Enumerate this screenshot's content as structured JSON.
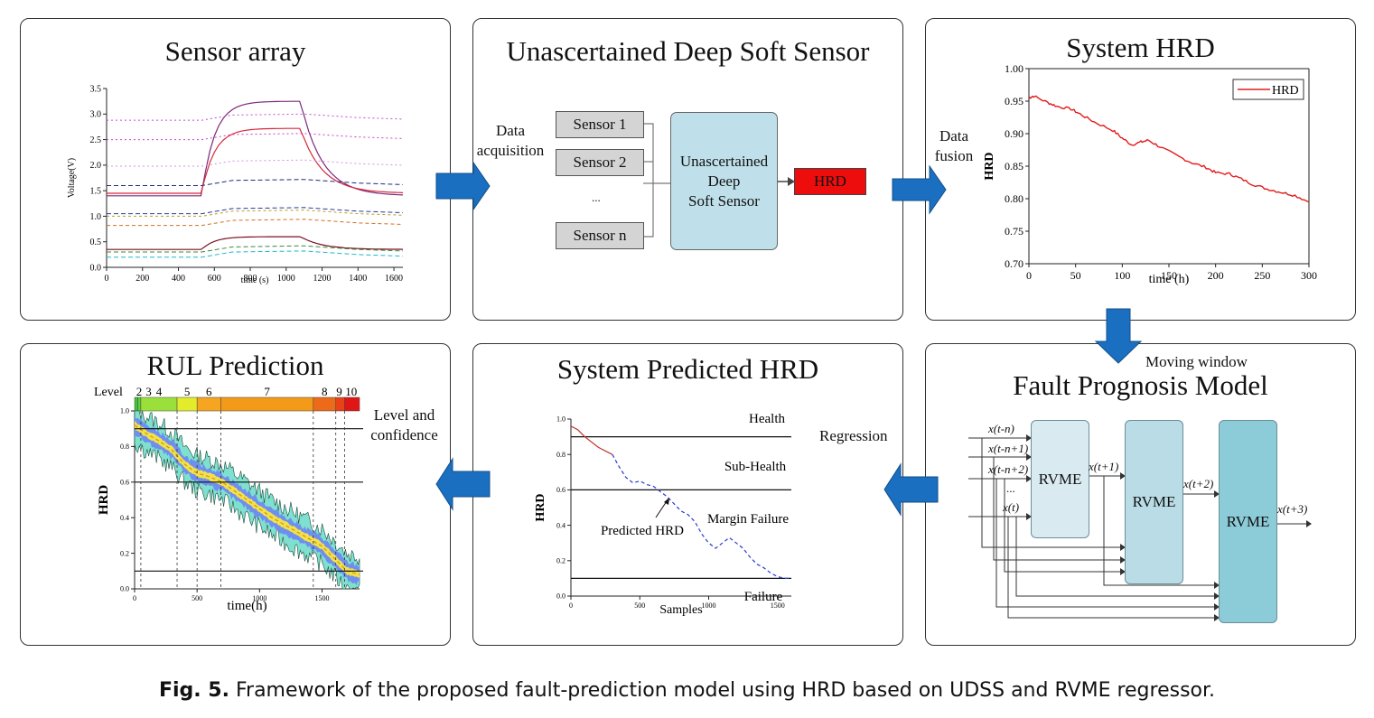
{
  "caption": {
    "prefix": "Fig. 5.",
    "text": "Framework of the proposed fault-prediction model using HRD based on UDSS and RVME regressor."
  },
  "panel_sensor": {
    "title": "Sensor array",
    "chart_data": {
      "type": "line",
      "xlabel": "time (s)",
      "ylabel": "Voltage(V)",
      "xlim": [
        0,
        1650
      ],
      "ylim": [
        0,
        3.5
      ],
      "x_ticks": [
        "0",
        "200",
        "400",
        "600",
        "800",
        "1000",
        "1200",
        "1400",
        "1600"
      ],
      "y_ticks": [
        "0.0",
        "0.5",
        "1.0",
        "1.5",
        "2.0",
        "2.5",
        "3.0",
        "3.5"
      ]
    }
  },
  "panel_udss": {
    "title": "Unascertained Deep Soft Sensor",
    "sensors": [
      "Sensor 1",
      "Sensor 2",
      "...",
      "Sensor n"
    ],
    "model_label": [
      "Unascertained",
      "Deep",
      "Soft Sensor"
    ],
    "output_label": "HRD",
    "arrow_in_label": [
      "Data",
      "acquisition"
    ],
    "arrow_out_label": [
      "Data",
      "fusion"
    ]
  },
  "panel_hrd": {
    "title": "System HRD",
    "chart_data": {
      "type": "line",
      "xlabel": "time (h)",
      "ylabel": "HRD",
      "xlim": [
        0,
        300
      ],
      "ylim": [
        0.7,
        1.0
      ],
      "x_ticks": [
        "0",
        "50",
        "100",
        "150",
        "200",
        "250",
        "300"
      ],
      "y_ticks": [
        "0.70",
        "0.75",
        "0.80",
        "0.85",
        "0.90",
        "0.95",
        "1.00"
      ],
      "legend": "top-right",
      "series": [
        {
          "name": "HRD",
          "color": "#e21b1b",
          "x": [
            0,
            5,
            20,
            30,
            45,
            55,
            70,
            90,
            100,
            110,
            120,
            128,
            140,
            160,
            175,
            190,
            200,
            215,
            225,
            240,
            255,
            270,
            285,
            300
          ],
          "y": [
            0.955,
            0.958,
            0.948,
            0.942,
            0.938,
            0.93,
            0.918,
            0.905,
            0.893,
            0.883,
            0.887,
            0.89,
            0.88,
            0.865,
            0.855,
            0.848,
            0.84,
            0.838,
            0.832,
            0.822,
            0.815,
            0.81,
            0.805,
            0.795
          ]
        }
      ]
    },
    "arrow_down_label": "Moving window"
  },
  "panel_fpm": {
    "title": "Fault Prognosis Model",
    "inputs": [
      "x(t-n)",
      "x(t-n+1)",
      "x(t-n+2)",
      "...",
      "x(t)"
    ],
    "block_label": "RVME",
    "outputs": [
      "x(t+1)",
      "x(t+2)",
      "x(t+3)"
    ],
    "arrow_label": "Regression"
  },
  "panel_pred": {
    "title": "System  Predicted HRD",
    "zones": [
      "Health",
      "Sub-Health",
      "Margin Failure",
      "Failure"
    ],
    "predicted_label": "Predicted HRD",
    "chart_data": {
      "type": "line",
      "xlabel": "Samples",
      "ylabel": "HRD",
      "xlim": [
        0,
        1600
      ],
      "ylim": [
        0,
        1.0
      ],
      "x_ticks": [
        "0",
        "500",
        "1000",
        "1500"
      ],
      "y_ticks": [
        "0.0",
        "0.2",
        "0.4",
        "0.6",
        "0.8",
        "1.0"
      ],
      "thresholds": [
        0.9,
        0.6,
        0.1
      ],
      "series": [
        {
          "name": "",
          "color": "#c0392b",
          "style": "solid",
          "x": [
            0,
            50,
            100,
            150,
            200,
            250,
            300
          ],
          "y": [
            0.96,
            0.94,
            0.9,
            0.87,
            0.84,
            0.82,
            0.8
          ]
        },
        {
          "name": "",
          "color": "#2a3ccf",
          "style": "dashed",
          "x": [
            300,
            350,
            400,
            450,
            500,
            550,
            600,
            650,
            700,
            750,
            800,
            850,
            900,
            950,
            1000,
            1050,
            1100,
            1150,
            1200,
            1250,
            1300,
            1350,
            1400,
            1450,
            1500,
            1550,
            1600
          ],
          "y": [
            0.8,
            0.73,
            0.67,
            0.64,
            0.65,
            0.63,
            0.62,
            0.59,
            0.56,
            0.52,
            0.48,
            0.46,
            0.42,
            0.35,
            0.3,
            0.27,
            0.3,
            0.33,
            0.3,
            0.27,
            0.22,
            0.18,
            0.16,
            0.13,
            0.11,
            0.1,
            0.1
          ]
        }
      ]
    }
  },
  "panel_rul": {
    "title": "RUL Prediction",
    "level_label": "Level",
    "levels": [
      "2",
      "3",
      "4",
      "5",
      "6",
      "7",
      "8",
      "9",
      "10"
    ],
    "arrow_label": [
      "Level and",
      "confidence"
    ],
    "chart_data": {
      "type": "area",
      "xlabel": "time(h)",
      "ylabel": "HRD",
      "xlim": [
        0,
        1800
      ],
      "ylim": [
        0,
        1.0
      ],
      "x_ticks": [
        "0",
        "500",
        "1000",
        "1500"
      ],
      "y_ticks": [
        "0.0",
        "0.2",
        "0.4",
        "0.6",
        "0.8",
        "1.0"
      ],
      "thresholds": [
        0.9,
        0.6,
        0.1
      ],
      "level_boundaries": [
        0,
        25,
        50,
        340,
        500,
        690,
        1430,
        1610,
        1680,
        1800
      ],
      "level_colors": [
        "#3ec63e",
        "#5dd23a",
        "#9be03a",
        "#e2ec2a",
        "#f5a520",
        "#f39a18",
        "#ec6a18",
        "#e84217",
        "#e01616"
      ],
      "series": [
        {
          "name": "",
          "x": [
            0,
            100,
            200,
            300,
            400,
            500,
            600,
            700,
            800,
            900,
            1000,
            1100,
            1200,
            1300,
            1400,
            1500,
            1600,
            1700,
            1800
          ],
          "y": [
            0.92,
            0.87,
            0.83,
            0.78,
            0.7,
            0.65,
            0.63,
            0.6,
            0.55,
            0.5,
            0.45,
            0.4,
            0.36,
            0.32,
            0.28,
            0.24,
            0.17,
            0.1,
            0.08
          ]
        }
      ]
    }
  }
}
